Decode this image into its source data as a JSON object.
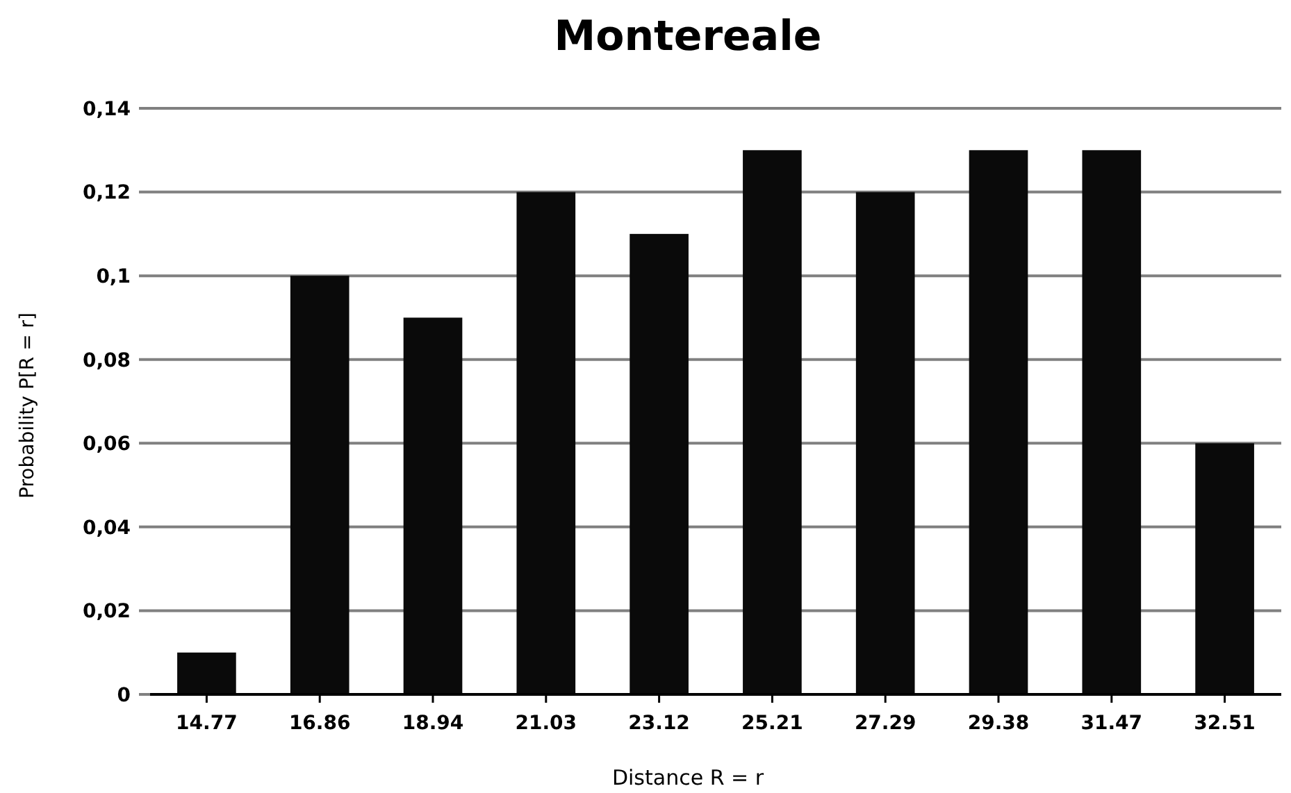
{
  "chart_data": {
    "type": "bar",
    "title": "Montereale",
    "xlabel": "Distance R = r",
    "ylabel": "Probability P[R = r]",
    "categories": [
      "14.77",
      "16.86",
      "18.94",
      "21.03",
      "23.12",
      "25.21",
      "27.29",
      "29.38",
      "31.47",
      "32.51"
    ],
    "values": [
      0.01,
      0.1,
      0.09,
      0.12,
      0.11,
      0.13,
      0.12,
      0.13,
      0.13,
      0.06
    ],
    "color": "#0a0a0a",
    "ylim": [
      0,
      0.14
    ],
    "yticks": [
      0,
      {
        "value": 0.02,
        "label": "0,02"
      },
      {
        "value": 0.04,
        "label": "0,04"
      },
      {
        "value": 0.06,
        "label": "0,06"
      },
      {
        "value": 0.08,
        "label": "0,08"
      },
      {
        "value": 0.1,
        "label": "0,1"
      },
      {
        "value": 0.12,
        "label": "0,12"
      },
      {
        "value": 0.14,
        "label": "0,14"
      }
    ],
    "grid": "y"
  }
}
